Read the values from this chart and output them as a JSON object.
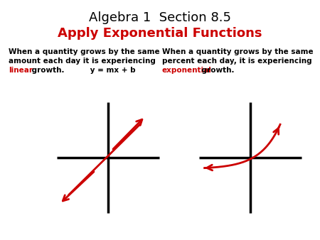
{
  "title_line1": "Algebra 1  Section 8.5",
  "title_line2": "Apply Exponential Functions",
  "title_color1": "#000000",
  "title_color2": "#cc0000",
  "title_fs": 13,
  "title_fs2": 13,
  "left_line1": "When a quantity grows by the same",
  "left_line2": "amount each day it is experiencing",
  "left_line3a": "linear",
  "left_line3b": " growth.          y = mx + b",
  "right_line1": "When a quantity grows by the same",
  "right_line2": "percent each day, it is experiencing",
  "right_line3a": "exponential",
  "right_line3b": " growth.",
  "text_fs": 7.5,
  "red": "#cc0000",
  "black": "#000000",
  "white": "#ffffff"
}
